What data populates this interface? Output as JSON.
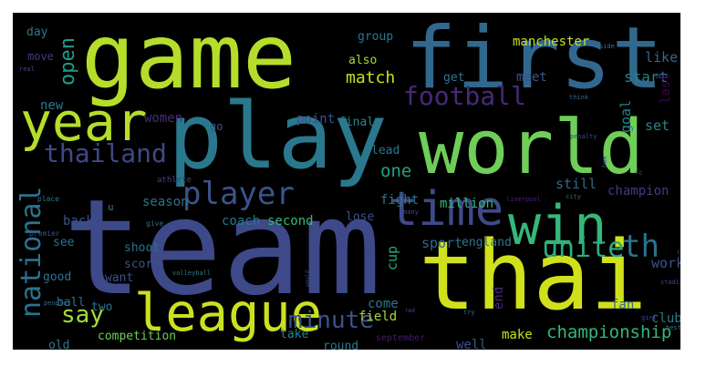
{
  "colors": {
    "background": "#000000",
    "frame": "#ffffff"
  },
  "words": [
    {
      "text": "game",
      "color": "#b5de2b"
    },
    {
      "text": "first",
      "color": "#31688e"
    },
    {
      "text": "play",
      "color": "#2a788e"
    },
    {
      "text": "world",
      "color": "#6ece58"
    },
    {
      "text": "team",
      "color": "#3e4989"
    },
    {
      "text": "thai",
      "color": "#d0e11c"
    },
    {
      "text": "year",
      "color": "#b5de2b"
    },
    {
      "text": "league",
      "color": "#cae11f"
    },
    {
      "text": "win",
      "color": "#35b779"
    },
    {
      "text": "time",
      "color": "#3e4a89"
    },
    {
      "text": "football",
      "color": "#482878"
    },
    {
      "text": "player",
      "color": "#3b528b"
    },
    {
      "text": "thailand",
      "color": "#3e4989"
    },
    {
      "text": "national",
      "color": "#2c728e"
    },
    {
      "text": "unite",
      "color": "#29af7f"
    },
    {
      "text": "th",
      "color": "#2c728e"
    },
    {
      "text": "say",
      "color": "#a5db36"
    },
    {
      "text": "minute",
      "color": "#3b528b"
    },
    {
      "text": "championship",
      "color": "#35b779"
    },
    {
      "text": "open",
      "color": "#1f9e89"
    },
    {
      "text": "match",
      "color": "#c8e020"
    },
    {
      "text": "manchester",
      "color": "#c8e020"
    },
    {
      "text": "women",
      "color": "#472d7b"
    },
    {
      "text": "point",
      "color": "#3b528b"
    },
    {
      "text": "final",
      "color": "#26828e"
    },
    {
      "text": "also",
      "color": "#a0da39"
    },
    {
      "text": "group",
      "color": "#2a788e"
    },
    {
      "text": "meet",
      "color": "#3b528b"
    },
    {
      "text": "get",
      "color": "#2a788e"
    },
    {
      "text": "like",
      "color": "#31688e"
    },
    {
      "text": "start",
      "color": "#26828e"
    },
    {
      "text": "last",
      "color": "#440154"
    },
    {
      "text": "goal",
      "color": "#25848e"
    },
    {
      "text": "set",
      "color": "#25848e"
    },
    {
      "text": "still",
      "color": "#31688e"
    },
    {
      "text": "one",
      "color": "#20a386"
    },
    {
      "text": "lead",
      "color": "#2a788e"
    },
    {
      "text": "fight",
      "color": "#2a788e"
    },
    {
      "text": "million",
      "color": "#35b779"
    },
    {
      "text": "champion",
      "color": "#443983"
    },
    {
      "text": "coach",
      "color": "#2a788e"
    },
    {
      "text": "second",
      "color": "#38b977"
    },
    {
      "text": "season",
      "color": "#2c728e"
    },
    {
      "text": "back",
      "color": "#3b528b"
    },
    {
      "text": "lose",
      "color": "#3b528b"
    },
    {
      "text": "sport",
      "color": "#31688e"
    },
    {
      "text": "england",
      "color": "#2a788e"
    },
    {
      "text": "work",
      "color": "#3b528b"
    },
    {
      "text": "shoot",
      "color": "#2c728e"
    },
    {
      "text": "see",
      "color": "#2c728e"
    },
    {
      "text": "score",
      "color": "#3b528b"
    },
    {
      "text": "want",
      "color": "#3b528b"
    },
    {
      "text": "good",
      "color": "#2c728e"
    },
    {
      "text": "cup",
      "color": "#22a884"
    },
    {
      "text": "ball",
      "color": "#2c728e"
    },
    {
      "text": "two",
      "color": "#2a788e"
    },
    {
      "text": "come",
      "color": "#2a788e"
    },
    {
      "text": "field",
      "color": "#a0da39"
    },
    {
      "text": "end",
      "color": "#482878"
    },
    {
      "text": "fan",
      "color": "#31688e"
    },
    {
      "text": "club",
      "color": "#2a788e"
    },
    {
      "text": "make",
      "color": "#c8e020"
    },
    {
      "text": "competition",
      "color": "#6ece58"
    },
    {
      "text": "take",
      "color": "#26828e"
    },
    {
      "text": "round",
      "color": "#2a788e"
    },
    {
      "text": "well",
      "color": "#3b528b"
    },
    {
      "text": "old",
      "color": "#2a788e"
    },
    {
      "text": "go",
      "color": "#3b528b"
    },
    {
      "text": "new",
      "color": "#2a788e"
    },
    {
      "text": "day",
      "color": "#2a788e"
    },
    {
      "text": "move",
      "color": "#443983"
    },
    {
      "text": "september",
      "color": "#481a6c"
    },
    {
      "text": "u",
      "color": "#25848e"
    },
    {
      "text": "athlete",
      "color": "#414487"
    },
    {
      "text": "place",
      "color": "#2a788e"
    },
    {
      "text": "give",
      "color": "#31688e"
    },
    {
      "text": "premier",
      "color": "#3b528b"
    },
    {
      "text": "volleyball",
      "color": "#2a788e"
    },
    {
      "text": "people",
      "color": "#31688e"
    },
    {
      "text": "chelsea",
      "color": "#3e4989"
    },
    {
      "text": "liverpool",
      "color": "#482878"
    },
    {
      "text": "city",
      "color": "#31688e"
    },
    {
      "text": "many",
      "color": "#3e4989"
    },
    {
      "text": "real",
      "color": "#3e4989"
    },
    {
      "text": "think",
      "color": "#31688e"
    },
    {
      "text": "half",
      "color": "#3e4989"
    },
    {
      "text": "penalty",
      "color": "#3e4989"
    },
    {
      "text": "fc",
      "color": "#3b528b"
    },
    {
      "text": "box",
      "color": "#3e4989"
    },
    {
      "text": "side",
      "color": "#2a788e"
    },
    {
      "text": "today",
      "color": "#3e4989"
    },
    {
      "text": "stadium",
      "color": "#3e4989"
    },
    {
      "text": "girl",
      "color": "#3e4989"
    },
    {
      "text": "best",
      "color": "#2a788e"
    },
    {
      "text": "try",
      "color": "#31688e"
    },
    {
      "text": "red",
      "color": "#3e4989"
    },
    {
      "text": "next",
      "color": "#3e4989"
    },
    {
      "text": "would",
      "color": "#3e4989"
    }
  ]
}
